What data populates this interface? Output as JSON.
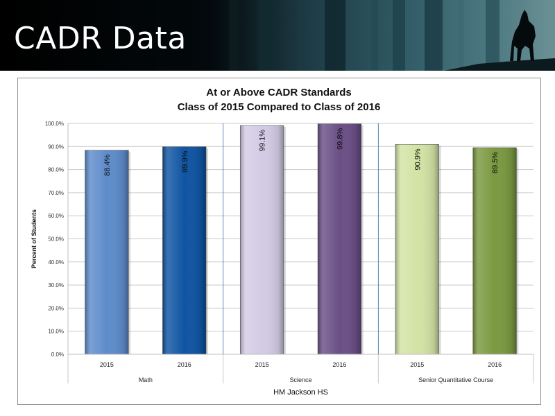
{
  "slide": {
    "title": "CADR Data"
  },
  "chart_data": {
    "type": "bar",
    "title": [
      "At or Above CADR Standards",
      "Class of 2015 Compared to Class of 2016"
    ],
    "ylabel": "Percent of Students",
    "xlabel": "HM Jackson HS",
    "ylim": [
      0,
      100
    ],
    "yticks": [
      "0.0%",
      "10.0%",
      "20.0%",
      "30.0%",
      "40.0%",
      "50.0%",
      "60.0%",
      "70.0%",
      "80.0%",
      "90.0%",
      "100.0%"
    ],
    "groups": [
      {
        "name": "Math",
        "categories": [
          "2015",
          "2016"
        ],
        "values": [
          88.4,
          89.9
        ],
        "labels": [
          "88.4%",
          "89.9%"
        ],
        "colors": [
          "#5e8ccb",
          "#0f54a2"
        ]
      },
      {
        "name": "Science",
        "categories": [
          "2015",
          "2016"
        ],
        "values": [
          99.1,
          99.8
        ],
        "labels": [
          "99.1%",
          "99.8%"
        ],
        "colors": [
          "#d3cbe5",
          "#6a4f86"
        ]
      },
      {
        "name": "Senior Quantitative Course",
        "categories": [
          "2015",
          "2016"
        ],
        "values": [
          90.9,
          89.5
        ],
        "labels": [
          "90.9%",
          "89.5%"
        ],
        "colors": [
          "#d3e3a5",
          "#7a9940"
        ]
      }
    ],
    "grid": true,
    "legend": "none"
  }
}
